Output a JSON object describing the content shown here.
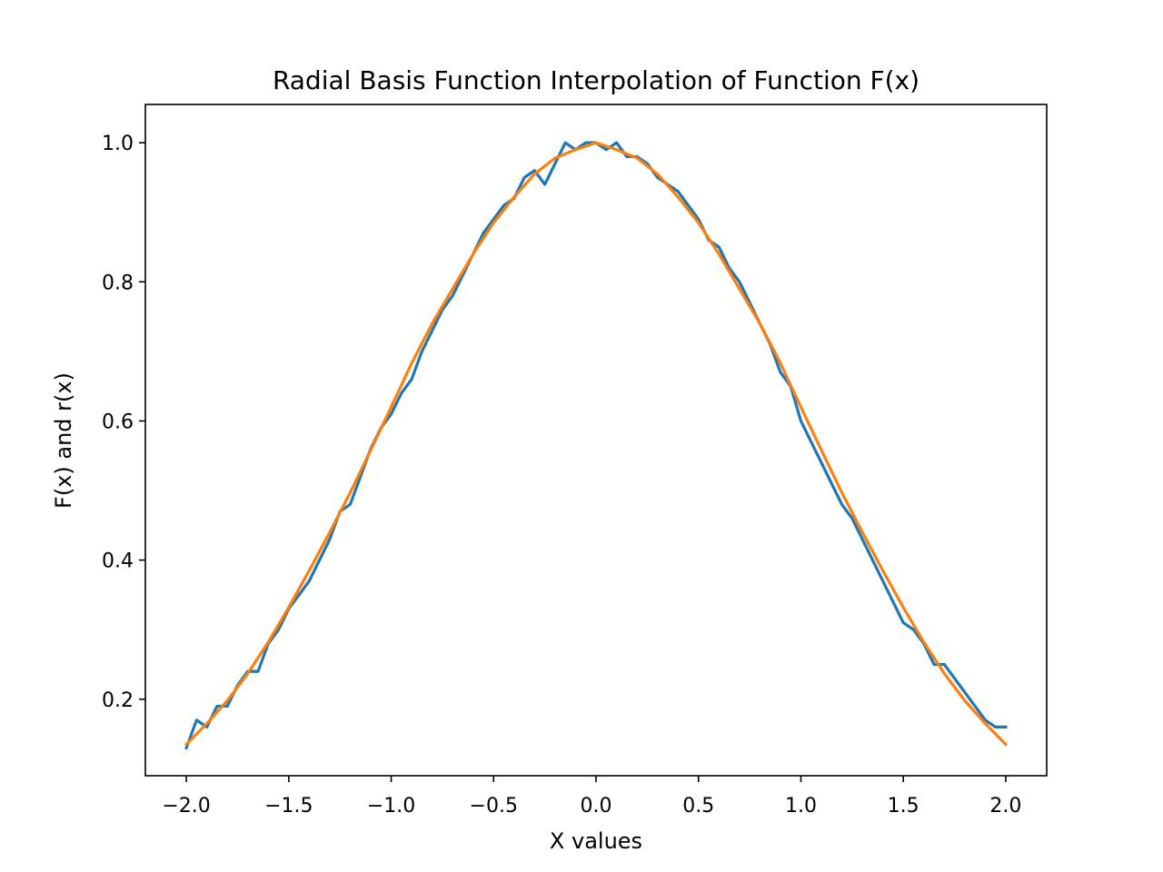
{
  "chart_data": {
    "type": "line",
    "title": "Radial Basis Function Interpolation of Function F(x)",
    "xlabel": "X values",
    "ylabel": "F(x) and r(x)",
    "xlim": [
      -2.2,
      2.2
    ],
    "ylim": [
      0.09,
      1.055
    ],
    "xticks": [
      -2.0,
      -1.5,
      -1.0,
      -0.5,
      0.0,
      0.5,
      1.0,
      1.5,
      2.0
    ],
    "xtick_labels": [
      "−2.0",
      "−1.5",
      "−1.0",
      "−0.5",
      "0.0",
      "0.5",
      "1.0",
      "1.5",
      "2.0"
    ],
    "yticks": [
      0.2,
      0.4,
      0.6,
      0.8,
      1.0
    ],
    "ytick_labels": [
      "0.2",
      "0.4",
      "0.6",
      "0.8",
      "1.0"
    ],
    "grid": false,
    "series": [
      {
        "color": "#1f77b4",
        "x": [
          -2.0,
          -1.95,
          -1.9,
          -1.85,
          -1.8,
          -1.75,
          -1.7,
          -1.65,
          -1.6,
          -1.55,
          -1.5,
          -1.45,
          -1.4,
          -1.35,
          -1.3,
          -1.25,
          -1.2,
          -1.15,
          -1.1,
          -1.05,
          -1.0,
          -0.95,
          -0.9,
          -0.85,
          -0.8,
          -0.75,
          -0.7,
          -0.65,
          -0.6,
          -0.55,
          -0.5,
          -0.45,
          -0.4,
          -0.35,
          -0.3,
          -0.25,
          -0.2,
          -0.15,
          -0.1,
          -0.05,
          0.0,
          0.05,
          0.1,
          0.15,
          0.2,
          0.25,
          0.3,
          0.35,
          0.4,
          0.45,
          0.5,
          0.55,
          0.6,
          0.65,
          0.7,
          0.75,
          0.8,
          0.85,
          0.9,
          0.95,
          1.0,
          1.05,
          1.1,
          1.15,
          1.2,
          1.25,
          1.3,
          1.35,
          1.4,
          1.45,
          1.5,
          1.55,
          1.6,
          1.65,
          1.7,
          1.75,
          1.8,
          1.85,
          1.9,
          1.95,
          2.0
        ],
        "y": [
          0.13,
          0.17,
          0.16,
          0.19,
          0.19,
          0.22,
          0.24,
          0.24,
          0.28,
          0.3,
          0.33,
          0.35,
          0.37,
          0.4,
          0.43,
          0.47,
          0.48,
          0.52,
          0.56,
          0.59,
          0.61,
          0.64,
          0.66,
          0.7,
          0.73,
          0.76,
          0.78,
          0.81,
          0.84,
          0.87,
          0.89,
          0.91,
          0.92,
          0.95,
          0.96,
          0.94,
          0.97,
          1.0,
          0.99,
          1.0,
          1.0,
          0.99,
          1.0,
          0.98,
          0.98,
          0.97,
          0.95,
          0.94,
          0.93,
          0.91,
          0.89,
          0.86,
          0.85,
          0.82,
          0.8,
          0.77,
          0.74,
          0.71,
          0.67,
          0.65,
          0.6,
          0.57,
          0.54,
          0.51,
          0.48,
          0.46,
          0.43,
          0.4,
          0.37,
          0.34,
          0.31,
          0.3,
          0.28,
          0.25,
          0.25,
          0.23,
          0.21,
          0.19,
          0.17,
          0.16,
          0.16
        ]
      },
      {
        "color": "#ff7f0e",
        "x": [
          -2.0,
          -1.9,
          -1.8,
          -1.7,
          -1.6,
          -1.5,
          -1.4,
          -1.3,
          -1.2,
          -1.1,
          -1.0,
          -0.9,
          -0.8,
          -0.7,
          -0.6,
          -0.5,
          -0.4,
          -0.3,
          -0.2,
          -0.1,
          0.0,
          0.1,
          0.2,
          0.3,
          0.4,
          0.5,
          0.6,
          0.7,
          0.8,
          0.9,
          1.0,
          1.1,
          1.2,
          1.3,
          1.4,
          1.5,
          1.6,
          1.7,
          1.8,
          1.9,
          2.0
        ],
        "y": [
          0.135,
          0.165,
          0.198,
          0.237,
          0.282,
          0.332,
          0.385,
          0.44,
          0.497,
          0.558,
          0.62,
          0.683,
          0.74,
          0.79,
          0.84,
          0.885,
          0.922,
          0.955,
          0.978,
          0.99,
          1.0,
          0.99,
          0.978,
          0.955,
          0.922,
          0.885,
          0.84,
          0.79,
          0.74,
          0.683,
          0.62,
          0.558,
          0.497,
          0.44,
          0.385,
          0.332,
          0.282,
          0.237,
          0.198,
          0.165,
          0.135
        ]
      }
    ]
  }
}
